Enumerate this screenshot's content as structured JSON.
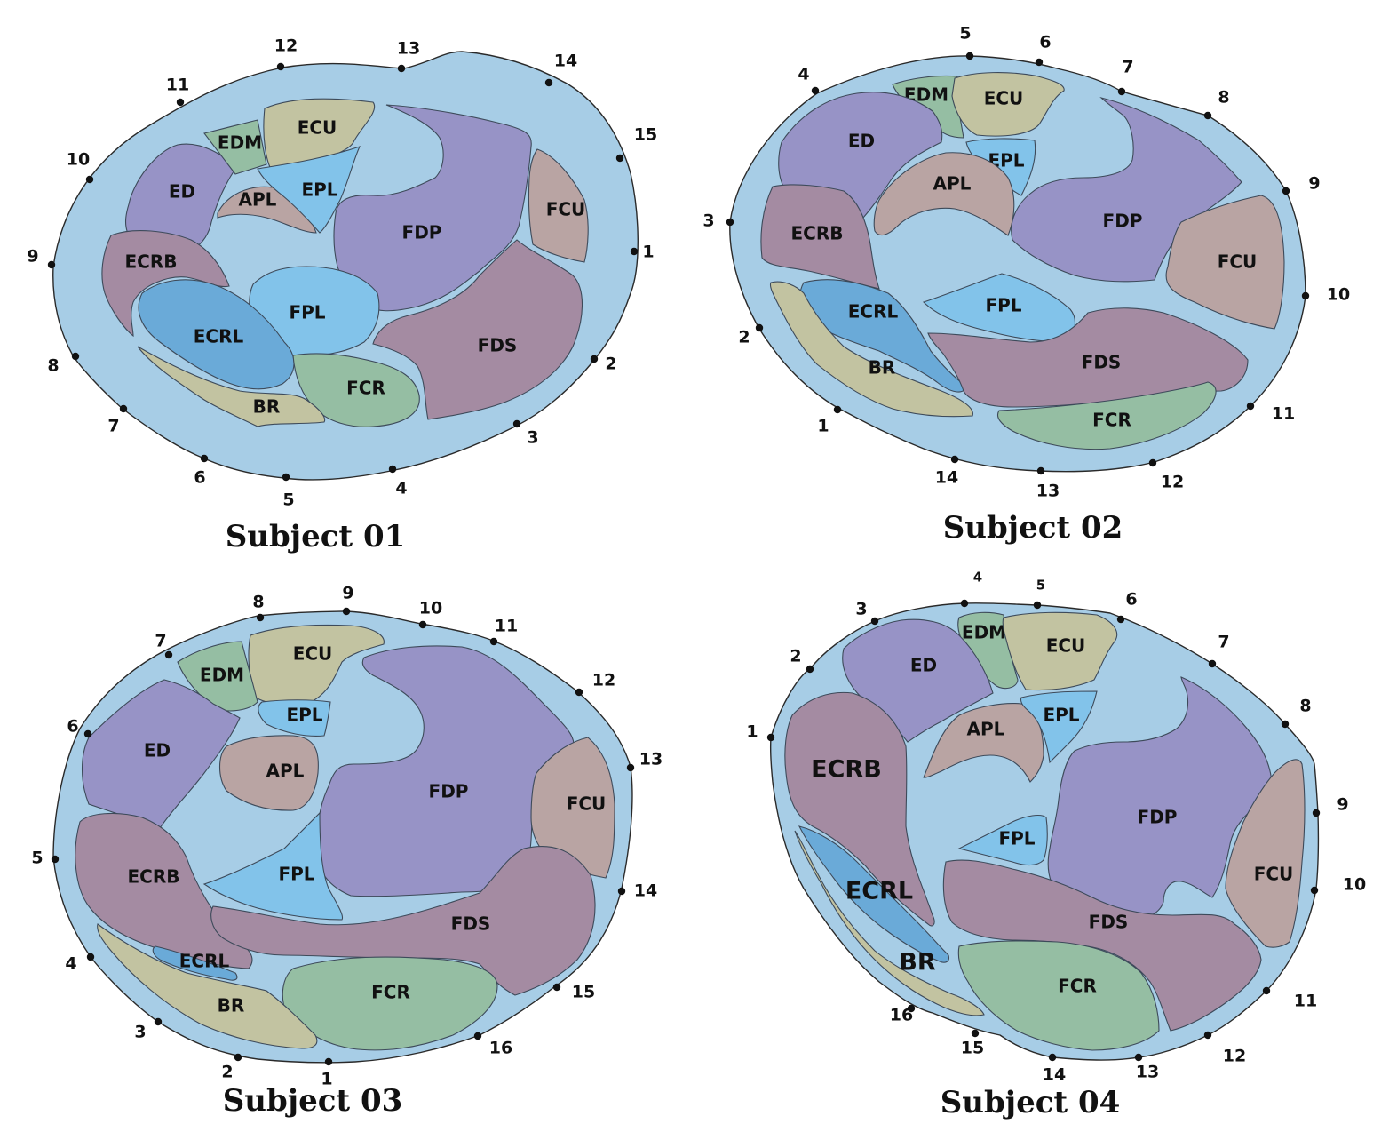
{
  "colors": {
    "background": "#ffffff",
    "limb": "#a7cde6",
    "ED": "#9793c6",
    "FDP": "#9793c6",
    "ECRB": "#a48ba2",
    "FDS": "#a48ba2",
    "ECU": "#c2c3a1",
    "BR": "#c2c3a1",
    "EDM": "#95bea3",
    "FCR": "#95bea3",
    "APL": "#b9a4a3",
    "FCU": "#b9a4a3",
    "EPL": "#82c3ea",
    "FPL": "#82c3ea",
    "ECRL": "#6aaad8",
    "electrode": "#111111"
  },
  "panels": [
    {
      "title": "Subject 01",
      "muscles": [
        {
          "name": "ED",
          "label": "ED"
        },
        {
          "name": "EDM",
          "label": "EDM"
        },
        {
          "name": "ECU",
          "label": "ECU"
        },
        {
          "name": "APL",
          "label": "APL"
        },
        {
          "name": "EPL",
          "label": "EPL"
        },
        {
          "name": "FDP",
          "label": "FDP"
        },
        {
          "name": "FCU",
          "label": "FCU"
        },
        {
          "name": "ECRB",
          "label": "ECRB"
        },
        {
          "name": "FPL",
          "label": "FPL"
        },
        {
          "name": "ECRL",
          "label": "ECRL"
        },
        {
          "name": "FDS",
          "label": "FDS"
        },
        {
          "name": "FCR",
          "label": "FCR"
        },
        {
          "name": "BR",
          "label": "BR"
        }
      ],
      "electrodes": [
        "1",
        "2",
        "3",
        "4",
        "5",
        "6",
        "7",
        "8",
        "9",
        "10",
        "11",
        "12",
        "13",
        "14",
        "15"
      ]
    },
    {
      "title": "Subject 02",
      "muscles": [
        {
          "name": "EDM",
          "label": "EDM"
        },
        {
          "name": "ECU",
          "label": "ECU"
        },
        {
          "name": "ED",
          "label": "ED"
        },
        {
          "name": "EPL",
          "label": "EPL"
        },
        {
          "name": "APL",
          "label": "APL"
        },
        {
          "name": "FDP",
          "label": "FDP"
        },
        {
          "name": "ECRB",
          "label": "ECRB"
        },
        {
          "name": "FCU",
          "label": "FCU"
        },
        {
          "name": "FPL",
          "label": "FPL"
        },
        {
          "name": "ECRL",
          "label": "ECRL"
        },
        {
          "name": "FDS",
          "label": "FDS"
        },
        {
          "name": "BR",
          "label": "BR"
        },
        {
          "name": "FCR",
          "label": "FCR"
        }
      ],
      "electrodes": [
        "1",
        "2",
        "3",
        "4",
        "5",
        "6",
        "7",
        "8",
        "9",
        "10",
        "11",
        "12",
        "13",
        "14"
      ]
    },
    {
      "title": "Subject 03",
      "muscles": [
        {
          "name": "ECU",
          "label": "ECU"
        },
        {
          "name": "EDM",
          "label": "EDM"
        },
        {
          "name": "EPL",
          "label": "EPL"
        },
        {
          "name": "ED",
          "label": "ED"
        },
        {
          "name": "APL",
          "label": "APL"
        },
        {
          "name": "FDP",
          "label": "FDP"
        },
        {
          "name": "FCU",
          "label": "FCU"
        },
        {
          "name": "ECRB",
          "label": "ECRB"
        },
        {
          "name": "FPL",
          "label": "FPL"
        },
        {
          "name": "FDS",
          "label": "FDS"
        },
        {
          "name": "ECRL",
          "label": "ECRL"
        },
        {
          "name": "FCR",
          "label": "FCR"
        },
        {
          "name": "BR",
          "label": "BR"
        }
      ],
      "electrodes": [
        "1",
        "2",
        "3",
        "4",
        "5",
        "6",
        "7",
        "8",
        "9",
        "10",
        "11",
        "12",
        "13",
        "14",
        "15",
        "16"
      ]
    },
    {
      "title": "Subject 04",
      "muscles": [
        {
          "name": "EDM",
          "label": "EDM"
        },
        {
          "name": "ECU",
          "label": "ECU"
        },
        {
          "name": "ED",
          "label": "ED"
        },
        {
          "name": "APL",
          "label": "APL"
        },
        {
          "name": "EPL",
          "label": "EPL"
        },
        {
          "name": "ECRB",
          "label": "ECRB"
        },
        {
          "name": "FDP",
          "label": "FDP"
        },
        {
          "name": "FPL",
          "label": "FPL"
        },
        {
          "name": "FCU",
          "label": "FCU"
        },
        {
          "name": "ECRL",
          "label": "ECRL"
        },
        {
          "name": "FDS",
          "label": "FDS"
        },
        {
          "name": "BR",
          "label": "BR"
        },
        {
          "name": "FCR",
          "label": "FCR"
        }
      ],
      "electrodes": [
        "1",
        "2",
        "3",
        "4",
        "5",
        "6",
        "7",
        "8",
        "9",
        "10",
        "11",
        "12",
        "13",
        "14",
        "15",
        "16"
      ]
    }
  ]
}
